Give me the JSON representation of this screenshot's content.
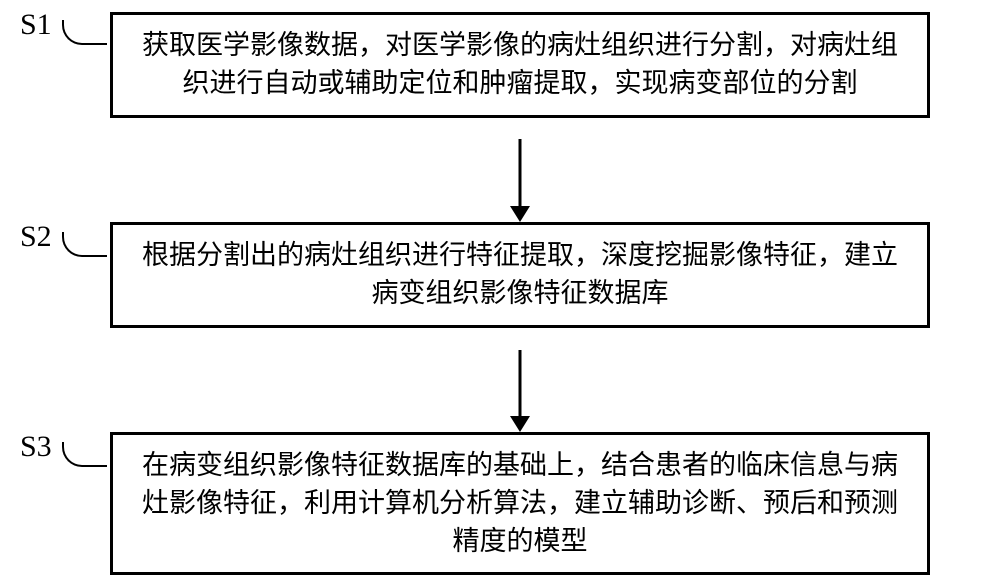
{
  "flowchart": {
    "type": "flowchart",
    "background_color": "#ffffff",
    "box_border_color": "#000000",
    "box_border_width": 3,
    "box_fill_color": "#ffffff",
    "arrow_color": "#000000",
    "text_color": "#000000",
    "font_size": 27,
    "label_font_size": 30,
    "font_family": "SimSun",
    "steps": [
      {
        "id": "S1",
        "label": "S1",
        "text": "获取医学影像数据，对医学影像的病灶组织进行分割，对病灶组织进行自动或辅助定位和肿瘤提取，实现病变部位的分割"
      },
      {
        "id": "S2",
        "label": "S2",
        "text": "根据分割出的病灶组织进行特征提取，深度挖掘影像特征，建立病变组织影像特征数据库"
      },
      {
        "id": "S3",
        "label": "S3",
        "text": "在病变组织影像特征数据库的基础上，结合患者的临床信息与病灶影像特征，利用计算机分析算法，建立辅助诊断、预后和预测精度的模型"
      }
    ],
    "edges": [
      {
        "from": "S1",
        "to": "S2"
      },
      {
        "from": "S2",
        "to": "S3"
      }
    ]
  }
}
